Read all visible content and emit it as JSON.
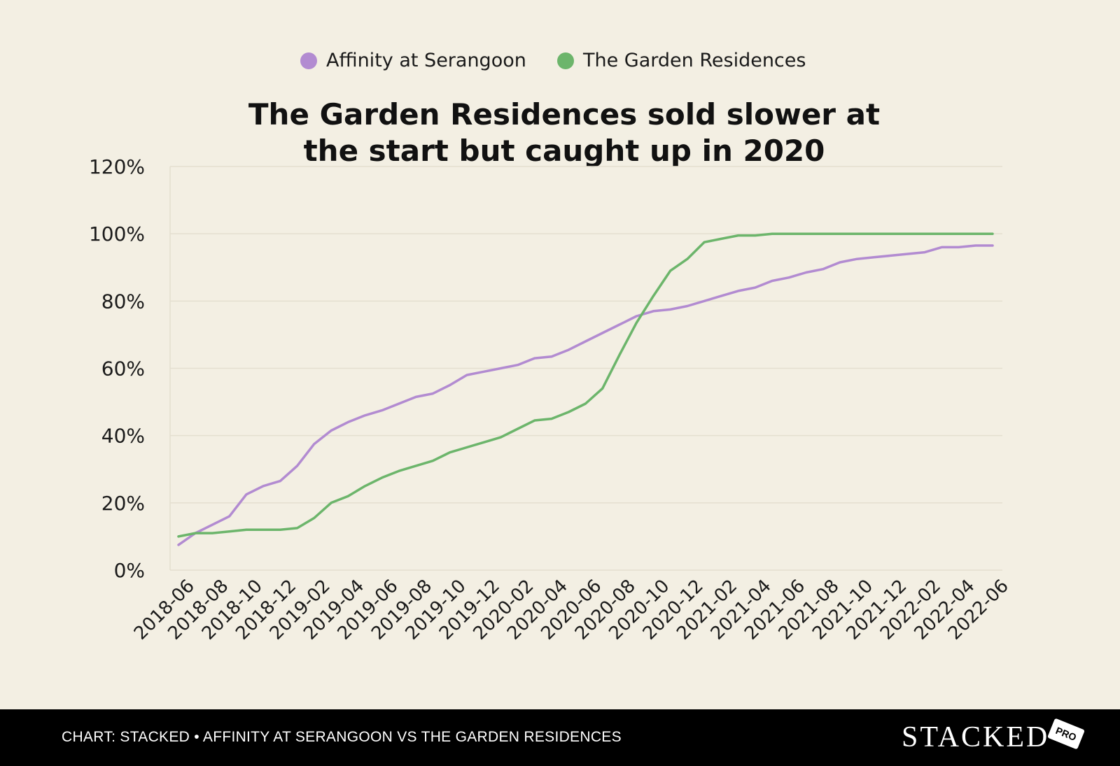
{
  "chart_data": {
    "type": "line",
    "title": "The Garden Residences sold slower at the start but caught up in 2020",
    "title_lines": [
      "The Garden Residences sold slower at",
      "the start but caught up in 2020"
    ],
    "xlabel": "",
    "ylabel": "",
    "ylim": [
      0,
      120
    ],
    "yticks": [
      "0%",
      "20%",
      "40%",
      "60%",
      "80%",
      "100%",
      "120%"
    ],
    "ytick_values": [
      0,
      20,
      40,
      60,
      80,
      100,
      120
    ],
    "legend_position": "top-center",
    "grid": true,
    "x_labels": [
      "2018-06",
      "2018-08",
      "2018-10",
      "2018-12",
      "2019-02",
      "2019-04",
      "2019-06",
      "2019-08",
      "2019-10",
      "2019-12",
      "2020-02",
      "2020-04",
      "2020-06",
      "2020-08",
      "2020-10",
      "2020-12",
      "2021-02",
      "2021-04",
      "2021-06",
      "2021-08",
      "2021-10",
      "2021-12",
      "2022-02",
      "2022-04",
      "2022-06"
    ],
    "x": [
      "2018-06",
      "2018-07",
      "2018-08",
      "2018-09",
      "2018-10",
      "2018-11",
      "2018-12",
      "2019-01",
      "2019-02",
      "2019-03",
      "2019-04",
      "2019-05",
      "2019-06",
      "2019-07",
      "2019-08",
      "2019-09",
      "2019-10",
      "2019-11",
      "2019-12",
      "2020-01",
      "2020-02",
      "2020-03",
      "2020-04",
      "2020-05",
      "2020-06",
      "2020-07",
      "2020-08",
      "2020-09",
      "2020-10",
      "2020-11",
      "2020-12",
      "2021-01",
      "2021-02",
      "2021-03",
      "2021-04",
      "2021-05",
      "2021-06",
      "2021-07",
      "2021-08",
      "2021-09",
      "2021-10",
      "2021-11",
      "2021-12",
      "2022-01",
      "2022-02",
      "2022-03",
      "2022-04",
      "2022-05",
      "2022-06"
    ],
    "series": [
      {
        "name": "Affinity at Serangoon",
        "color": "#b28bd1",
        "values": [
          7.5,
          11,
          13.5,
          16,
          22.5,
          25,
          26.5,
          31,
          37.5,
          41.5,
          44,
          46,
          47.5,
          49.5,
          51.5,
          52.5,
          55,
          58,
          59,
          60,
          61,
          63,
          63.5,
          65.5,
          68,
          70.5,
          73,
          75.5,
          77,
          77.5,
          78.5,
          80,
          81.5,
          83,
          84,
          86,
          87,
          88.5,
          89.5,
          91.5,
          92.5,
          93,
          93.5,
          94,
          94.5,
          96,
          96,
          96.5,
          96.5
        ]
      },
      {
        "name": "The Garden Residences",
        "color": "#6cb56b",
        "values": [
          10,
          11,
          11,
          11.5,
          12,
          12,
          12,
          12.5,
          15.5,
          20,
          22,
          25,
          27.5,
          29.5,
          31,
          32.5,
          35,
          36.5,
          38,
          39.5,
          42,
          44.5,
          45,
          47,
          49.5,
          54,
          64,
          73.5,
          81.5,
          89,
          92.5,
          97.5,
          98.5,
          99.5,
          99.5,
          100,
          100,
          100,
          100,
          100,
          100,
          100,
          100,
          100,
          100,
          100,
          100,
          100,
          100
        ]
      }
    ]
  },
  "footer": {
    "caption": "CHART: STACKED • AFFINITY AT SERANGOON VS THE GARDEN RESIDENCES",
    "brand": "STACKED",
    "badge": "PRO"
  }
}
